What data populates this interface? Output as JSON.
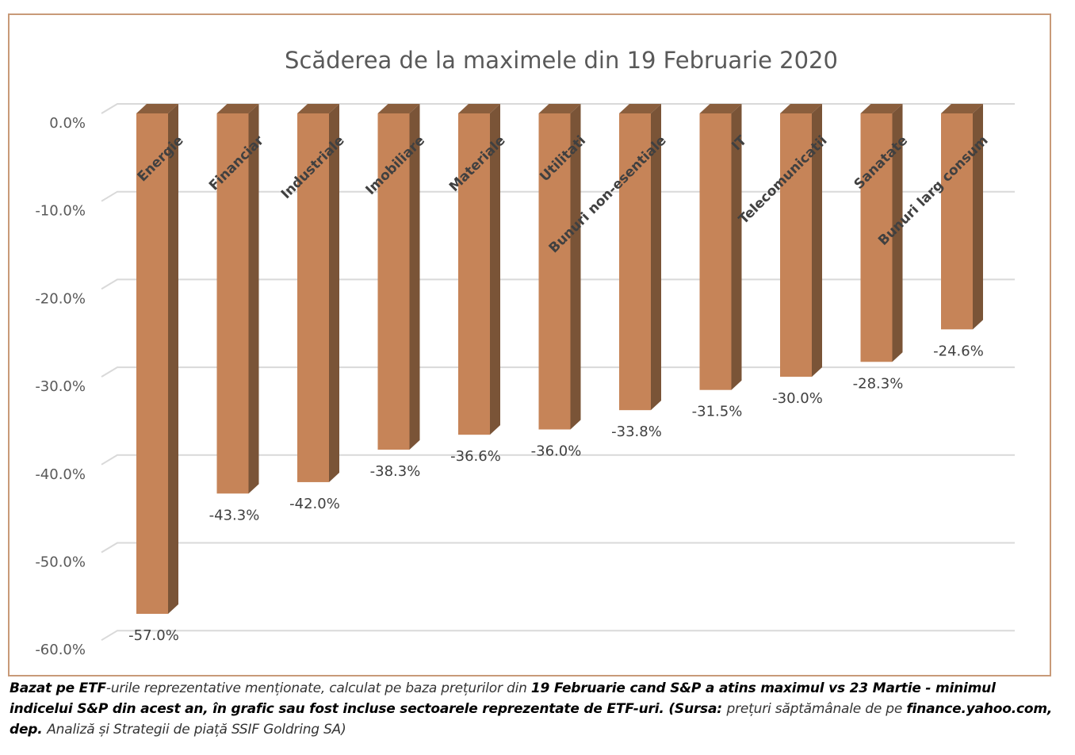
{
  "chart_data": {
    "type": "bar",
    "title": "Scăderea de la maximele din 19 Februarie 2020",
    "categories": [
      "Energie",
      "Financiar",
      "Industriale",
      "Imobiliare",
      "Materiale",
      "Utilitati",
      "Bunuri non-esentiale",
      "IT",
      "Telecomunicatii",
      "Sanatate",
      "Bunuri larg consum"
    ],
    "values": [
      -57.0,
      -43.3,
      -42.0,
      -38.3,
      -36.6,
      -36.0,
      -33.8,
      -31.5,
      -30.0,
      -28.3,
      -24.6
    ],
    "value_labels": [
      "-57.0%",
      "-43.3%",
      "-42.0%",
      "-38.3%",
      "-36.6%",
      "-36.0%",
      "-33.8%",
      "-31.5%",
      "-30.0%",
      "-28.3%",
      "-24.6%"
    ],
    "ylim": [
      -60,
      0
    ],
    "yticks": [
      "0.0%",
      "-10.0%",
      "-20.0%",
      "-30.0%",
      "-40.0%",
      "-50.0%",
      "-60.0%"
    ],
    "ytick_values": [
      0,
      -10,
      -20,
      -30,
      -40,
      -50,
      -60
    ],
    "grid": true,
    "bar_color": "#c68458",
    "bar_side_color": "#7a5437",
    "bar_top_color": "#8a5e3d"
  },
  "caption": {
    "p1": "Bazat pe ETF",
    "p2": "-urile reprezentative menționate, calculat pe baza prețurilor din ",
    "p3": "19 Februarie cand S&P a atins maximul vs 23 Martie - minimul indicelui S&P din acest an, în grafic sau fost incluse sectoarele reprezentate de ETF-uri. (Sursa: ",
    "p4": "prețuri săptămânale de pe ",
    "p5": "finance.yahoo.com,  dep. ",
    "p6": "Analiză și Strategii de piață SSIF Goldring SA)"
  }
}
